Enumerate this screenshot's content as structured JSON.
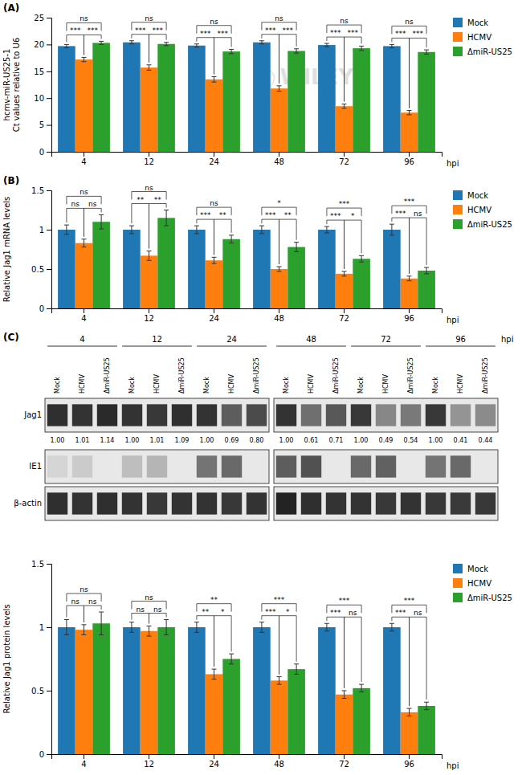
{
  "chart_data": [
    {
      "type": "bar",
      "title": "(A)",
      "ylabel": "hcmv-miR-US25-1\nCt values relative to U6",
      "xlabel": "hpi",
      "categories": [
        "4",
        "12",
        "24",
        "48",
        "72",
        "96"
      ],
      "series": [
        {
          "name": "Mock",
          "values": [
            19.7,
            20.4,
            19.8,
            20.4,
            19.9,
            19.7
          ],
          "errors": [
            0.3,
            0.3,
            0.3,
            0.3,
            0.3,
            0.3
          ]
        },
        {
          "name": "HCMV",
          "values": [
            17.2,
            15.7,
            13.5,
            11.8,
            8.5,
            7.3
          ],
          "errors": [
            0.4,
            0.5,
            0.5,
            0.5,
            0.4,
            0.4
          ]
        },
        {
          "name": "ΔmiR-US25",
          "values": [
            20.3,
            20.1,
            18.7,
            18.8,
            19.3,
            18.6
          ],
          "errors": [
            0.3,
            0.3,
            0.4,
            0.4,
            0.4,
            0.4
          ]
        }
      ],
      "ylim": [
        0,
        25
      ],
      "yticks": [
        0,
        5,
        10,
        15,
        20,
        25
      ],
      "grid": false,
      "legend": "upper right",
      "annotations": [
        "WILEY"
      ],
      "significance": [
        {
          "between": [
            "Mock",
            "HCMV"
          ],
          "labels": [
            "***",
            "***",
            "***",
            "***",
            "***",
            "***"
          ]
        },
        {
          "between": [
            "HCMV",
            "ΔmiR-US25"
          ],
          "labels": [
            "***",
            "***",
            "***",
            "***",
            "***",
            "***"
          ]
        },
        {
          "between": [
            "Mock",
            "ΔmiR-US25"
          ],
          "labels": [
            "ns",
            "ns",
            "ns",
            "ns",
            "ns",
            "ns"
          ]
        }
      ]
    },
    {
      "type": "bar",
      "title": "(B)",
      "ylabel": "Relative Jag1 mRNA levels",
      "xlabel": "hpi",
      "categories": [
        "4",
        "12",
        "24",
        "48",
        "72",
        "96"
      ],
      "series": [
        {
          "name": "Mock",
          "values": [
            1.0,
            1.0,
            1.0,
            1.0,
            1.0,
            1.0
          ],
          "errors": [
            0.06,
            0.05,
            0.05,
            0.05,
            0.04,
            0.07
          ]
        },
        {
          "name": "HCMV",
          "values": [
            0.83,
            0.67,
            0.61,
            0.5,
            0.44,
            0.38
          ],
          "errors": [
            0.05,
            0.06,
            0.04,
            0.03,
            0.03,
            0.03
          ]
        },
        {
          "name": "ΔmiR-US25",
          "values": [
            1.1,
            1.15,
            0.88,
            0.78,
            0.63,
            0.48
          ],
          "errors": [
            0.09,
            0.1,
            0.05,
            0.06,
            0.04,
            0.04
          ]
        }
      ],
      "ylim": [
        0,
        1.5
      ],
      "yticks": [
        0,
        0.5,
        1,
        1.5
      ],
      "grid": false,
      "legend": "upper right",
      "significance": [
        {
          "between": [
            "Mock",
            "HCMV"
          ],
          "labels": [
            "ns",
            "**",
            "***",
            "***",
            "***",
            "***"
          ]
        },
        {
          "between": [
            "HCMV",
            "ΔmiR-US25"
          ],
          "labels": [
            "ns",
            "**",
            "**",
            "**",
            "*",
            "ns"
          ]
        },
        {
          "between": [
            "Mock",
            "ΔmiR-US25"
          ],
          "labels": [
            "ns",
            "ns",
            "ns",
            "*",
            "***",
            "***"
          ]
        }
      ]
    },
    {
      "type": "blot",
      "title": "(C)",
      "xlabel": "hpi",
      "samples": [
        "Mock",
        "HCMV",
        "ΔmiR-US25"
      ],
      "timepoints": [
        [
          "4",
          "12",
          "24"
        ],
        [
          "48",
          "72",
          "96"
        ]
      ],
      "rows": [
        {
          "name": "Jag1",
          "values": [
            [
              0.8,
              0.78,
              0.82,
              0.78,
              0.76,
              0.8,
              0.78,
              0.6,
              0.68
            ],
            [
              0.78,
              0.52,
              0.62,
              0.76,
              0.42,
              0.48,
              0.76,
              0.36,
              0.4
            ]
          ]
        },
        {
          "name": "IE1",
          "values": [
            [
              0.08,
              0.12,
              0.0,
              0.18,
              0.22,
              0.0,
              0.5,
              0.55,
              0.0
            ],
            [
              0.6,
              0.65,
              0.0,
              0.55,
              0.58,
              0.0,
              0.5,
              0.55,
              0.0
            ]
          ]
        },
        {
          "name": "β-actin",
          "values": [
            [
              0.8,
              0.78,
              0.8,
              0.78,
              0.76,
              0.78,
              0.78,
              0.76,
              0.78
            ],
            [
              0.85,
              0.8,
              0.78,
              0.78,
              0.76,
              0.78,
              0.76,
              0.75,
              0.76
            ]
          ]
        }
      ],
      "quantification": {
        "values": [
          [
            1.0,
            1.01,
            1.14,
            1.0,
            1.01,
            1.09,
            1.0,
            0.69,
            0.8
          ],
          [
            1.0,
            0.61,
            0.71,
            1.0,
            0.49,
            0.54,
            1.0,
            0.41,
            0.44
          ]
        ],
        "value_labels": [
          [
            "1.00",
            "1.01",
            "1.14",
            "1.00",
            "1.01",
            "1.09",
            "1.00",
            "0.69",
            "0.80"
          ],
          [
            "1.00",
            "0.61",
            "0.71",
            "1.00",
            "0.49",
            "0.54",
            "1.00",
            "0.41",
            "0.44"
          ]
        ]
      }
    },
    {
      "type": "bar",
      "ylabel": "Relative Jag1 protein levels",
      "xlabel": "hpi",
      "categories": [
        "4",
        "12",
        "24",
        "48",
        "72",
        "96"
      ],
      "series": [
        {
          "name": "Mock",
          "values": [
            1.0,
            1.0,
            1.0,
            1.0,
            1.0,
            1.0
          ],
          "errors": [
            0.06,
            0.04,
            0.04,
            0.04,
            0.03,
            0.03
          ]
        },
        {
          "name": "HCMV",
          "values": [
            0.98,
            0.97,
            0.63,
            0.58,
            0.47,
            0.33
          ],
          "errors": [
            0.04,
            0.04,
            0.04,
            0.03,
            0.03,
            0.03
          ]
        },
        {
          "name": "ΔmiR-US25",
          "values": [
            1.03,
            1.0,
            0.75,
            0.67,
            0.52,
            0.38
          ],
          "errors": [
            0.09,
            0.06,
            0.04,
            0.04,
            0.03,
            0.03
          ]
        }
      ],
      "ylim": [
        0,
        1.5
      ],
      "yticks": [
        0,
        0.5,
        1,
        1.5
      ],
      "grid": false,
      "legend": "upper right",
      "significance": [
        {
          "between": [
            "Mock",
            "HCMV"
          ],
          "labels": [
            "ns",
            "ns",
            "**",
            "***",
            "***",
            "***"
          ]
        },
        {
          "between": [
            "HCMV",
            "ΔmiR-US25"
          ],
          "labels": [
            "ns",
            "ns",
            "*",
            "*",
            "ns",
            "ns"
          ]
        },
        {
          "between": [
            "Mock",
            "ΔmiR-US25"
          ],
          "labels": [
            "ns",
            "ns",
            "**",
            "***",
            "***",
            "***"
          ]
        }
      ]
    }
  ]
}
